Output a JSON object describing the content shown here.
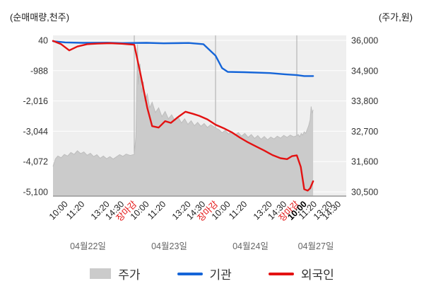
{
  "legend": {
    "items": [
      {
        "key": "price",
        "label": "주가",
        "type": "area",
        "color": "#cbcbcb"
      },
      {
        "key": "institution",
        "label": "기관",
        "type": "line",
        "color": "#1565d8"
      },
      {
        "key": "foreigner",
        "label": "외국인",
        "type": "line",
        "color": "#e31212"
      }
    ]
  },
  "chart_data": {
    "type": "line+area",
    "title": "",
    "grid": true,
    "left_axis": {
      "title": "(순매매량,천주)",
      "range": [
        -5100,
        40
      ],
      "tick_values": [
        40,
        -988,
        -2016,
        -3044,
        -4072,
        -5100
      ],
      "tick_labels": [
        "40",
        "-988",
        "-2,016",
        "-3,044",
        "-4,072",
        "-5,100"
      ]
    },
    "right_axis": {
      "title": "(주가,원)",
      "range": [
        30500,
        36000
      ],
      "tick_values": [
        36000,
        34900,
        33800,
        32700,
        31600,
        30500
      ],
      "tick_labels": [
        "36,000",
        "34,900",
        "33,800",
        "32,700",
        "31,600",
        "30,500"
      ]
    },
    "x_axis": {
      "close_label": "장마감",
      "close_label_color": "#e31212",
      "highlighted_tick": {
        "day_index": 3,
        "time": "10:00"
      },
      "days": [
        {
          "date": "04월22일",
          "times": [
            "10:00",
            "11:20",
            "13:20",
            "14:30",
            "장마감"
          ]
        },
        {
          "date": "04월23일",
          "times": [
            "10:00",
            "11:20",
            "13:20",
            "14:30",
            "장마감"
          ]
        },
        {
          "date": "04월24일",
          "times": [
            "10:00",
            "11:20",
            "13:20",
            "14:30",
            "장마감"
          ]
        },
        {
          "date": "04월27일",
          "times": [
            "10:00",
            "11:20",
            "13:20",
            "14:30"
          ]
        }
      ]
    },
    "series": [
      {
        "key": "price",
        "name": "주가",
        "axis": "right",
        "type": "area",
        "color": "#cbcbcb",
        "edge_color": "#bdbdbd",
        "points": [
          [
            0.0,
            31420
          ],
          [
            0.03,
            31700
          ],
          [
            0.06,
            31800
          ],
          [
            0.1,
            31740
          ],
          [
            0.14,
            31860
          ],
          [
            0.18,
            31800
          ],
          [
            0.22,
            31930
          ],
          [
            0.26,
            31860
          ],
          [
            0.3,
            31990
          ],
          [
            0.34,
            31890
          ],
          [
            0.38,
            31950
          ],
          [
            0.42,
            31830
          ],
          [
            0.46,
            31900
          ],
          [
            0.5,
            31780
          ],
          [
            0.54,
            31850
          ],
          [
            0.58,
            31720
          ],
          [
            0.62,
            31800
          ],
          [
            0.66,
            31700
          ],
          [
            0.7,
            31780
          ],
          [
            0.74,
            31690
          ],
          [
            0.78,
            31770
          ],
          [
            0.82,
            31850
          ],
          [
            0.86,
            31790
          ],
          [
            0.9,
            31870
          ],
          [
            0.95,
            31820
          ],
          [
            1.0,
            31860
          ],
          [
            1.02,
            32500
          ],
          [
            1.04,
            35850
          ],
          [
            1.05,
            34400
          ],
          [
            1.07,
            35150
          ],
          [
            1.09,
            34100
          ],
          [
            1.11,
            34500
          ],
          [
            1.13,
            33800
          ],
          [
            1.16,
            34050
          ],
          [
            1.19,
            33550
          ],
          [
            1.22,
            33750
          ],
          [
            1.26,
            33380
          ],
          [
            1.3,
            33550
          ],
          [
            1.34,
            33230
          ],
          [
            1.38,
            33420
          ],
          [
            1.42,
            33150
          ],
          [
            1.46,
            33300
          ],
          [
            1.5,
            33080
          ],
          [
            1.54,
            33220
          ],
          [
            1.58,
            33000
          ],
          [
            1.62,
            33150
          ],
          [
            1.66,
            32950
          ],
          [
            1.7,
            33080
          ],
          [
            1.74,
            32900
          ],
          [
            1.78,
            33020
          ],
          [
            1.82,
            32880
          ],
          [
            1.86,
            32980
          ],
          [
            1.9,
            32840
          ],
          [
            1.94,
            32940
          ],
          [
            2.0,
            32820
          ],
          [
            2.04,
            32760
          ],
          [
            2.08,
            32650
          ],
          [
            2.12,
            32730
          ],
          [
            2.16,
            32600
          ],
          [
            2.2,
            32690
          ],
          [
            2.24,
            32560
          ],
          [
            2.28,
            32650
          ],
          [
            2.32,
            32520
          ],
          [
            2.36,
            32620
          ],
          [
            2.4,
            32480
          ],
          [
            2.44,
            32580
          ],
          [
            2.48,
            32440
          ],
          [
            2.52,
            32540
          ],
          [
            2.56,
            32410
          ],
          [
            2.6,
            32510
          ],
          [
            2.64,
            32390
          ],
          [
            2.68,
            32490
          ],
          [
            2.72,
            32420
          ],
          [
            2.76,
            32520
          ],
          [
            2.8,
            32450
          ],
          [
            2.84,
            32550
          ],
          [
            2.88,
            32480
          ],
          [
            2.92,
            32560
          ],
          [
            2.96,
            32500
          ],
          [
            3.0,
            32540
          ],
          [
            3.03,
            32580
          ],
          [
            3.06,
            32500
          ],
          [
            3.09,
            32620
          ],
          [
            3.12,
            32560
          ],
          [
            3.15,
            32680
          ],
          [
            3.18,
            32620
          ],
          [
            3.21,
            32760
          ],
          [
            3.24,
            32900
          ],
          [
            3.27,
            33120
          ],
          [
            3.29,
            33600
          ],
          [
            3.31,
            33350
          ],
          [
            3.33,
            33480
          ]
        ]
      },
      {
        "key": "institution",
        "name": "기관",
        "axis": "left",
        "type": "line",
        "color": "#1565d8",
        "points": [
          [
            0.0,
            10
          ],
          [
            0.15,
            -30
          ],
          [
            0.36,
            -45
          ],
          [
            0.67,
            -40
          ],
          [
            0.85,
            -55
          ],
          [
            1.0,
            -50
          ],
          [
            1.15,
            -45
          ],
          [
            1.36,
            -60
          ],
          [
            1.67,
            -50
          ],
          [
            1.85,
            -90
          ],
          [
            2.0,
            -480
          ],
          [
            2.08,
            -900
          ],
          [
            2.15,
            -1030
          ],
          [
            2.36,
            -1040
          ],
          [
            2.67,
            -1070
          ],
          [
            2.85,
            -1110
          ],
          [
            3.0,
            -1140
          ],
          [
            3.15,
            -1170
          ],
          [
            3.33,
            -1170
          ]
        ]
      },
      {
        "key": "foreigner",
        "name": "외국인",
        "axis": "left",
        "type": "line",
        "color": "#e31212",
        "points": [
          [
            0.0,
            20
          ],
          [
            0.1,
            -90
          ],
          [
            0.2,
            -300
          ],
          [
            0.3,
            -170
          ],
          [
            0.42,
            -90
          ],
          [
            0.55,
            -70
          ],
          [
            0.7,
            -55
          ],
          [
            0.85,
            -75
          ],
          [
            1.0,
            -110
          ],
          [
            1.08,
            -1150
          ],
          [
            1.16,
            -2250
          ],
          [
            1.22,
            -2870
          ],
          [
            1.3,
            -2920
          ],
          [
            1.38,
            -2700
          ],
          [
            1.45,
            -2760
          ],
          [
            1.54,
            -2560
          ],
          [
            1.63,
            -2380
          ],
          [
            1.72,
            -2450
          ],
          [
            1.8,
            -2520
          ],
          [
            1.9,
            -2640
          ],
          [
            2.0,
            -2820
          ],
          [
            2.1,
            -2940
          ],
          [
            2.2,
            -3080
          ],
          [
            2.3,
            -3260
          ],
          [
            2.4,
            -3420
          ],
          [
            2.5,
            -3560
          ],
          [
            2.6,
            -3700
          ],
          [
            2.7,
            -3850
          ],
          [
            2.8,
            -3960
          ],
          [
            2.88,
            -3990
          ],
          [
            2.94,
            -3890
          ],
          [
            3.0,
            -3860
          ],
          [
            3.08,
            -4250
          ],
          [
            3.15,
            -5010
          ],
          [
            3.22,
            -5060
          ],
          [
            3.27,
            -4980
          ],
          [
            3.33,
            -4740
          ]
        ]
      }
    ]
  }
}
